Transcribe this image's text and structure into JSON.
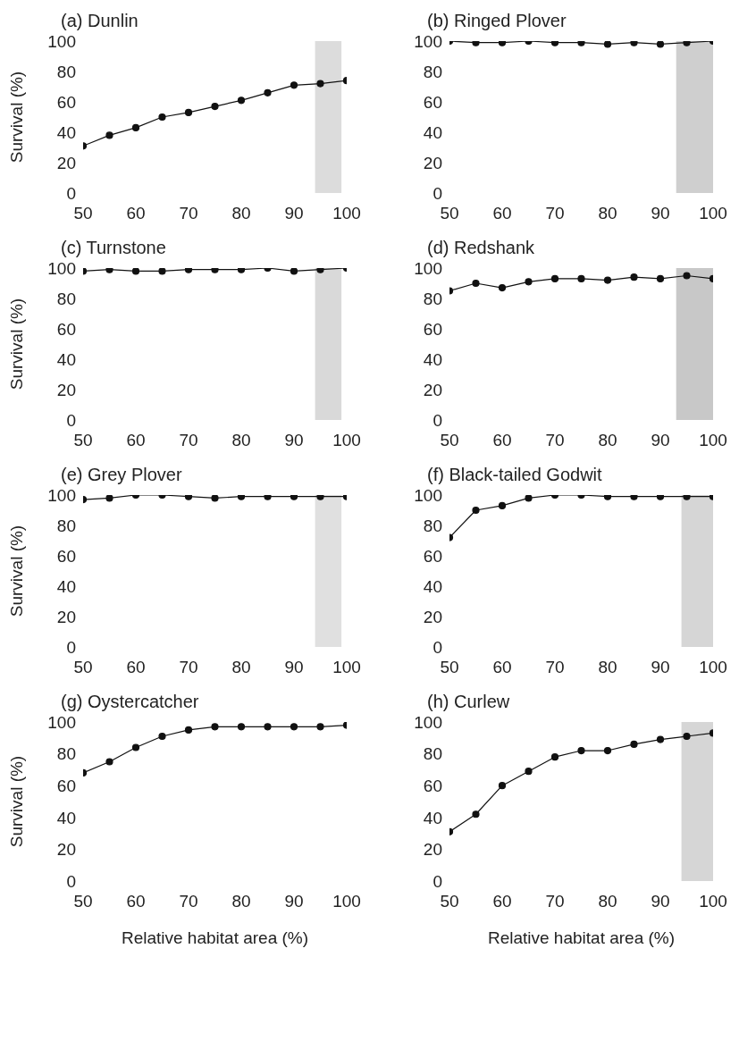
{
  "chart_data": [
    {
      "type": "line",
      "title": "(a) Dunlin",
      "ylabel": "Survival (%)",
      "x": [
        50,
        55,
        60,
        65,
        70,
        75,
        80,
        85,
        90,
        95,
        100
      ],
      "series": [
        {
          "color": "#111111",
          "values": [
            31,
            38,
            43,
            50,
            53,
            57,
            61,
            66,
            71,
            72,
            74
          ]
        }
      ],
      "xlim": [
        50,
        100
      ],
      "xticks": [
        50,
        60,
        70,
        80,
        90,
        100
      ],
      "ylim": [
        0,
        100
      ],
      "yticks": [
        0,
        20,
        40,
        60,
        80,
        100
      ],
      "marker": "circle",
      "bands": [
        {
          "axis": "x",
          "from": 94,
          "to": 99,
          "color": "#dcdcdc"
        }
      ]
    },
    {
      "type": "line",
      "title": "(b) Ringed Plover",
      "x": [
        50,
        55,
        60,
        65,
        70,
        75,
        80,
        85,
        90,
        95,
        100
      ],
      "series": [
        {
          "color": "#111111",
          "values": [
            100,
            99,
            99,
            100,
            99,
            99,
            98,
            99,
            98,
            99,
            100
          ]
        }
      ],
      "xlim": [
        50,
        100
      ],
      "xticks": [
        50,
        60,
        70,
        80,
        90,
        100
      ],
      "ylim": [
        0,
        100
      ],
      "yticks": [
        0,
        20,
        40,
        60,
        80,
        100
      ],
      "marker": "circle",
      "bands": [
        {
          "axis": "x",
          "from": 93,
          "to": 100,
          "color": "#cfcfcf"
        }
      ]
    },
    {
      "type": "line",
      "title": "(c) Turnstone",
      "ylabel": "Survival (%)",
      "x": [
        50,
        55,
        60,
        65,
        70,
        75,
        80,
        85,
        90,
        95,
        100
      ],
      "series": [
        {
          "color": "#111111",
          "values": [
            98,
            99,
            98,
            98,
            99,
            99,
            99,
            100,
            98,
            99,
            100
          ]
        }
      ],
      "xlim": [
        50,
        100
      ],
      "xticks": [
        50,
        60,
        70,
        80,
        90,
        100
      ],
      "ylim": [
        0,
        100
      ],
      "yticks": [
        0,
        20,
        40,
        60,
        80,
        100
      ],
      "marker": "circle",
      "bands": [
        {
          "axis": "x",
          "from": 94,
          "to": 99,
          "color": "#d9d9d9"
        }
      ]
    },
    {
      "type": "line",
      "title": "(d) Redshank",
      "x": [
        50,
        55,
        60,
        65,
        70,
        75,
        80,
        85,
        90,
        95,
        100
      ],
      "series": [
        {
          "color": "#111111",
          "values": [
            85,
            90,
            87,
            91,
            93,
            93,
            92,
            94,
            93,
            95,
            93
          ]
        }
      ],
      "xlim": [
        50,
        100
      ],
      "xticks": [
        50,
        60,
        70,
        80,
        90,
        100
      ],
      "ylim": [
        0,
        100
      ],
      "yticks": [
        0,
        20,
        40,
        60,
        80,
        100
      ],
      "marker": "circle",
      "bands": [
        {
          "axis": "x",
          "from": 93,
          "to": 100,
          "color": "#c8c8c8"
        }
      ]
    },
    {
      "type": "line",
      "title": "(e) Grey Plover",
      "ylabel": "Survival (%)",
      "x": [
        50,
        55,
        60,
        65,
        70,
        75,
        80,
        85,
        90,
        95,
        100
      ],
      "series": [
        {
          "color": "#111111",
          "values": [
            97,
            98,
            100,
            100,
            99,
            98,
            99,
            99,
            99,
            99,
            99
          ]
        }
      ],
      "xlim": [
        50,
        100
      ],
      "xticks": [
        50,
        60,
        70,
        80,
        90,
        100
      ],
      "ylim": [
        0,
        100
      ],
      "yticks": [
        0,
        20,
        40,
        60,
        80,
        100
      ],
      "marker": "circle",
      "bands": [
        {
          "axis": "x",
          "from": 94,
          "to": 99,
          "color": "#e0e0e0"
        }
      ]
    },
    {
      "type": "line",
      "title": "(f) Black-tailed Godwit",
      "x": [
        50,
        55,
        60,
        65,
        70,
        75,
        80,
        85,
        90,
        95,
        100
      ],
      "series": [
        {
          "color": "#111111",
          "values": [
            72,
            90,
            93,
            98,
            100,
            100,
            99,
            99,
            99,
            99,
            99
          ]
        }
      ],
      "xlim": [
        50,
        100
      ],
      "xticks": [
        50,
        60,
        70,
        80,
        90,
        100
      ],
      "ylim": [
        0,
        100
      ],
      "yticks": [
        0,
        20,
        40,
        60,
        80,
        100
      ],
      "marker": "circle",
      "bands": [
        {
          "axis": "x",
          "from": 94,
          "to": 100,
          "color": "#d6d6d6"
        }
      ]
    },
    {
      "type": "line",
      "title": "(g) Oystercatcher",
      "ylabel": "Survival (%)",
      "xlabel": "Relative habitat area (%)",
      "x": [
        50,
        55,
        60,
        65,
        70,
        75,
        80,
        85,
        90,
        95,
        100
      ],
      "series": [
        {
          "color": "#111111",
          "values": [
            68,
            75,
            84,
            91,
            95,
            97,
            97,
            97,
            97,
            97,
            98
          ]
        }
      ],
      "xlim": [
        50,
        100
      ],
      "xticks": [
        50,
        60,
        70,
        80,
        90,
        100
      ],
      "ylim": [
        0,
        100
      ],
      "yticks": [
        0,
        20,
        40,
        60,
        80,
        100
      ],
      "marker": "circle"
    },
    {
      "type": "line",
      "title": "(h) Curlew",
      "xlabel": "Relative habitat area (%)",
      "x": [
        50,
        55,
        60,
        65,
        70,
        75,
        80,
        85,
        90,
        95,
        100
      ],
      "series": [
        {
          "color": "#111111",
          "values": [
            31,
            42,
            60,
            69,
            78,
            82,
            82,
            86,
            89,
            91,
            93
          ]
        }
      ],
      "xlim": [
        50,
        100
      ],
      "xticks": [
        50,
        60,
        70,
        80,
        90,
        100
      ],
      "ylim": [
        0,
        100
      ],
      "yticks": [
        0,
        20,
        40,
        60,
        80,
        100
      ],
      "marker": "circle",
      "bands": [
        {
          "axis": "x",
          "from": 94,
          "to": 100,
          "color": "#d6d6d6"
        }
      ]
    }
  ]
}
